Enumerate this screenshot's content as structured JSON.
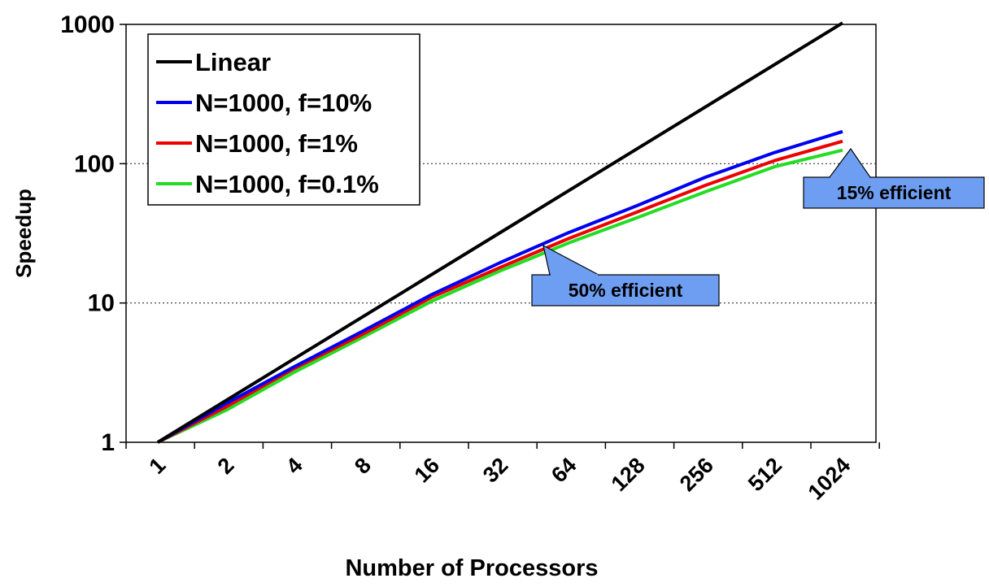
{
  "chart_data": {
    "type": "line",
    "title": "",
    "xlabel": "Number of Processors",
    "ylabel": "Speedup",
    "x_categories": [
      "1",
      "2",
      "4",
      "8",
      "16",
      "32",
      "64",
      "128",
      "256",
      "512",
      "1024"
    ],
    "y_scale": "log",
    "ylim": [
      1,
      1000
    ],
    "y_ticks": [
      "1",
      "10",
      "100",
      "1000"
    ],
    "grid": "dotted horizontal at 10 and 100",
    "legend_position": "top-left",
    "series": [
      {
        "name": "Linear",
        "color": "#000000",
        "x": [
          1,
          1024
        ],
        "y": [
          1,
          1024
        ]
      },
      {
        "name": "N=1000, f=10%",
        "color": "#0000ee",
        "x": [
          1,
          2,
          4,
          8,
          16,
          32,
          64,
          128,
          256,
          512,
          1024
        ],
        "y": [
          1,
          1.9,
          3.5,
          6.3,
          11.5,
          19.5,
          32,
          50,
          80,
          120,
          170
        ]
      },
      {
        "name": "N=1000, f=1%",
        "color": "#ee0000",
        "x": [
          1,
          2,
          4,
          8,
          16,
          32,
          64,
          128,
          256,
          512,
          1024
        ],
        "y": [
          1,
          1.8,
          3.4,
          6.0,
          11.0,
          18.0,
          29,
          45,
          70,
          105,
          145
        ]
      },
      {
        "name": "N=1000, f=0.1%",
        "color": "#22dd22",
        "x": [
          1,
          2,
          4,
          8,
          16,
          32,
          64,
          128,
          256,
          512,
          1024
        ],
        "y": [
          1,
          1.7,
          3.2,
          5.7,
          10.3,
          17.0,
          27,
          41,
          63,
          95,
          125
        ]
      }
    ],
    "annotations": [
      {
        "text": "50% efficient",
        "points_to_x": 32
      },
      {
        "text": "15% efficient",
        "points_to_x": 1024
      }
    ]
  }
}
